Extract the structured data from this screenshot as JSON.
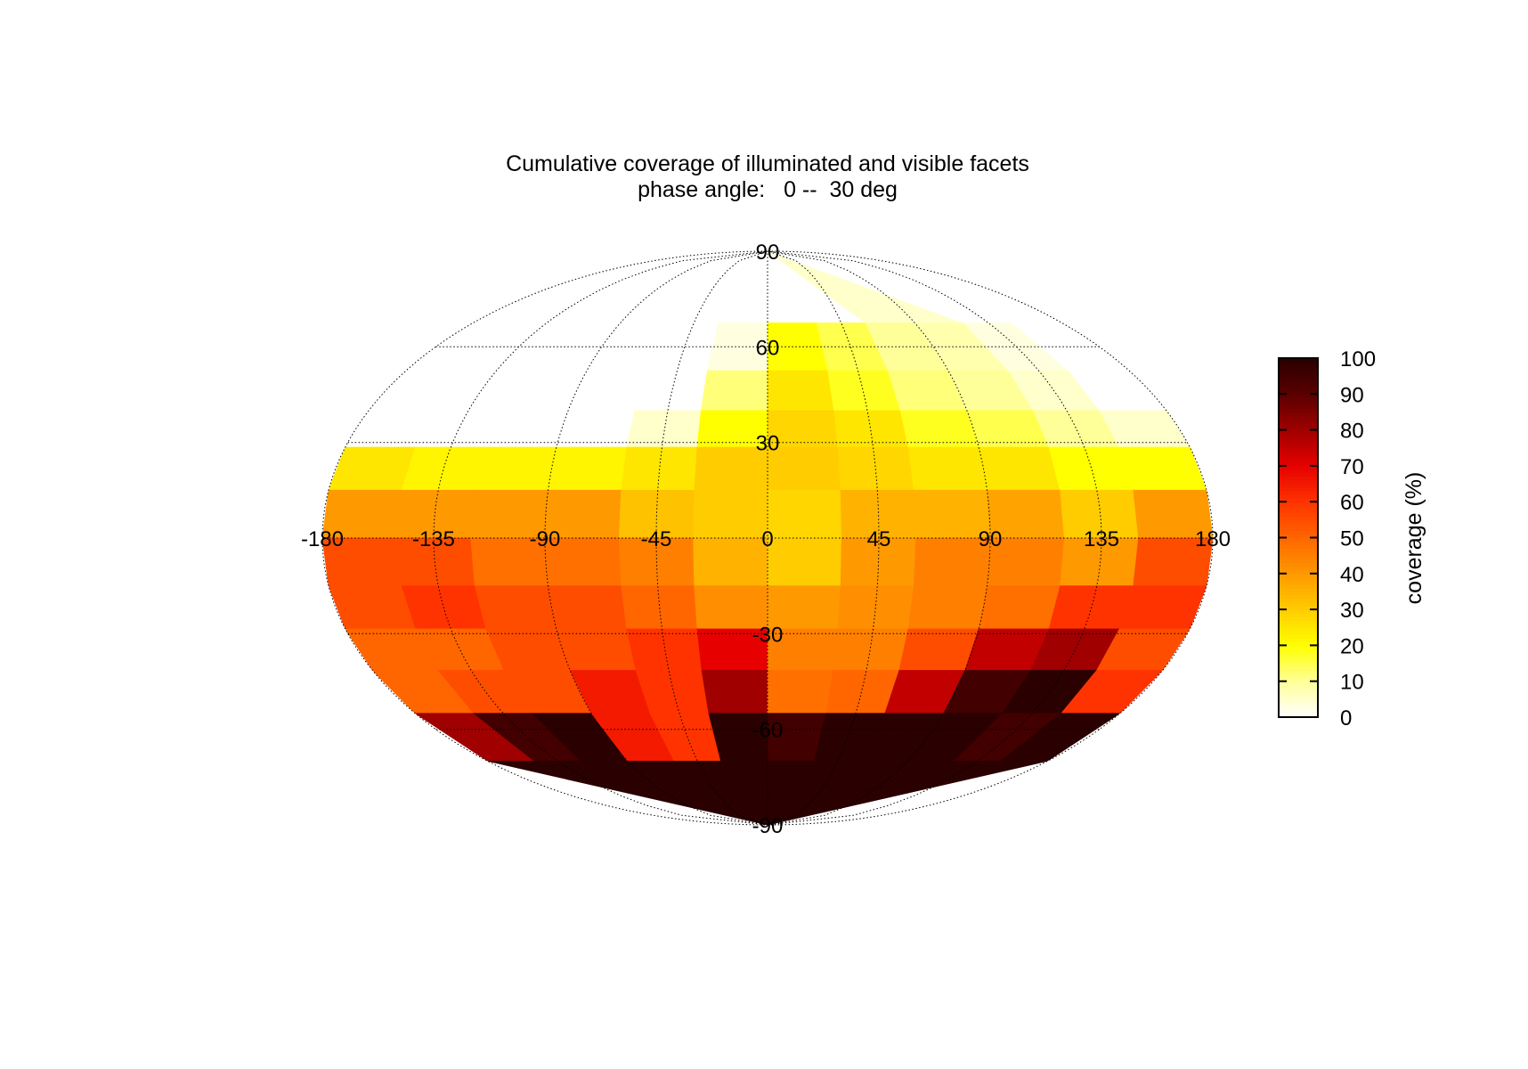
{
  "chart_data": {
    "type": "heatmap",
    "projection": "Mollweide",
    "title": "Cumulative coverage of illuminated and visible facets",
    "subtitle": "phase angle:   0 --  30 deg",
    "x_ticks": [
      "-180",
      "-135",
      "-90",
      "-45",
      "0",
      "45",
      "90",
      "135",
      "180"
    ],
    "y_ticks": [
      "90",
      "60",
      "30",
      "-30",
      "-60",
      "-90"
    ],
    "xlim": [
      -180,
      180
    ],
    "ylim": [
      -90,
      90
    ],
    "grid": true,
    "colorbar": {
      "label": "coverage (%)",
      "ticks": [
        "0",
        "10",
        "20",
        "30",
        "40",
        "50",
        "60",
        "70",
        "80",
        "90",
        "100"
      ],
      "range": [
        0,
        100
      ],
      "stops": [
        "#ffffff",
        "#ffff99",
        "#ffff00",
        "#ffcc00",
        "#ff9900",
        "#ff6600",
        "#ff3300",
        "#e60000",
        "#a00000",
        "#5a0000",
        "#2a0000"
      ]
    },
    "lon_grid": [
      -165,
      -135,
      -105,
      -75,
      -45,
      -15,
      15,
      45,
      75,
      105,
      135,
      165
    ],
    "lat_bands": [
      {
        "lat": 75,
        "values": [
          0,
          0,
          0,
          0,
          0,
          0,
          0,
          0,
          5,
          5,
          0,
          0
        ]
      },
      {
        "lat": 60,
        "values": [
          0,
          0,
          0,
          0,
          0,
          3,
          20,
          15,
          10,
          8,
          3,
          0
        ]
      },
      {
        "lat": 45,
        "values": [
          0,
          0,
          0,
          0,
          0,
          12,
          25,
          18,
          12,
          10,
          5,
          0
        ]
      },
      {
        "lat": 35,
        "values": [
          0,
          0,
          0,
          0,
          5,
          20,
          28,
          25,
          18,
          15,
          10,
          5
        ]
      },
      {
        "lat": 22,
        "values": [
          25,
          22,
          22,
          22,
          25,
          30,
          30,
          28,
          25,
          25,
          20,
          20
        ]
      },
      {
        "lat": 8,
        "values": [
          40,
          40,
          40,
          40,
          32,
          30,
          28,
          35,
          35,
          38,
          30,
          40
        ]
      },
      {
        "lat": -8,
        "values": [
          55,
          55,
          48,
          48,
          45,
          35,
          30,
          40,
          45,
          45,
          40,
          55
        ]
      },
      {
        "lat": -22,
        "values": [
          55,
          60,
          55,
          55,
          50,
          42,
          40,
          42,
          45,
          48,
          60,
          60
        ]
      },
      {
        "lat": -35,
        "values": [
          50,
          50,
          55,
          55,
          60,
          70,
          45,
          45,
          55,
          75,
          80,
          55
        ]
      },
      {
        "lat": -48,
        "values": [
          50,
          55,
          55,
          65,
          60,
          80,
          48,
          50,
          75,
          95,
          100,
          60
        ]
      },
      {
        "lat": -62,
        "values": [
          80,
          95,
          100,
          65,
          60,
          100,
          95,
          100,
          100,
          100,
          95,
          100
        ]
      },
      {
        "lat": -78,
        "values": [
          100,
          100,
          100,
          100,
          100,
          100,
          100,
          100,
          100,
          100,
          100,
          100
        ]
      }
    ]
  }
}
